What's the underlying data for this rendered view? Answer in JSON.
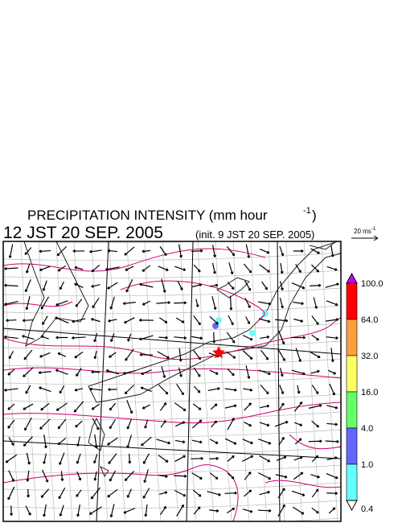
{
  "header": {
    "title": "PRECIPITATION INTENSITY (mm hour",
    "title_superscript": "-1",
    "title_close": ")",
    "valid_time": "12 JST 20 SEP. 2005",
    "init_time": "(init. 9 JST 20 SEP. 2005)"
  },
  "vector_scale": {
    "label": "20 ms",
    "superscript": "-1"
  },
  "legend": {
    "levels": [
      "100.0",
      "64.0",
      "32.0",
      "16.0",
      "4.0",
      "1.0",
      "0.4"
    ],
    "over_color": "#cc00ff",
    "under_color": "#ffffff",
    "colors": [
      "#ff0000",
      "#ffa040",
      "#ffff66",
      "#66ff66",
      "#6666ff",
      "#66ffff"
    ]
  }
}
